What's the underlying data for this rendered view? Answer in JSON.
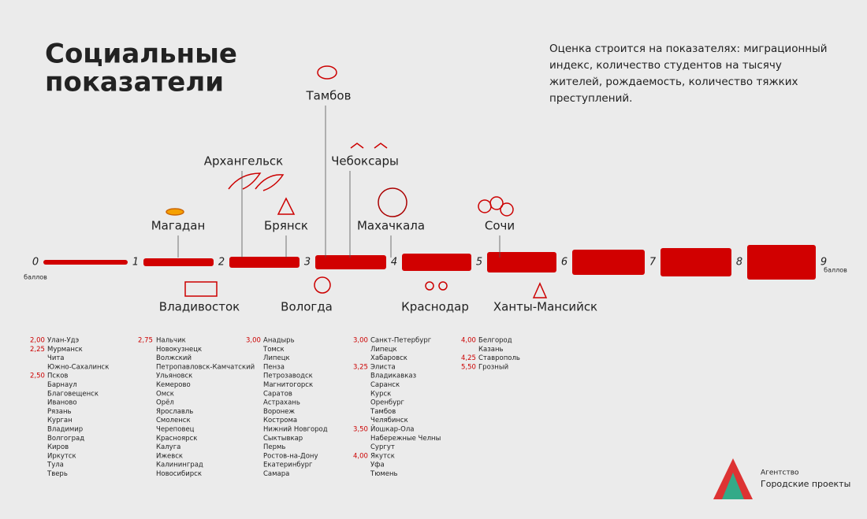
{
  "header": {
    "title_lines": [
      "Социальные",
      "показатели"
    ],
    "description": "Оценка строится на показателях: миграционный индекс, количество студентов на тысячу жителей, рождаемость, количество тяжких преступлений."
  },
  "scale": {
    "ticks": [
      0,
      1,
      2,
      3,
      4,
      5,
      6,
      7,
      8,
      9
    ],
    "unit_start": "баллов",
    "unit_end": "баллов"
  },
  "highlights": {
    "above": [
      "Магадан",
      "Архангельск",
      "Брянск",
      "Тамбов",
      "Чебоксары",
      "Махачкала",
      "Сочи"
    ],
    "below": [
      "Владивосток",
      "Вологда",
      "Краснодар",
      "Ханты-Мансийск"
    ]
  },
  "columns": [
    [
      {
        "score": "2,00",
        "cities": [
          "Улан-Удэ"
        ]
      },
      {
        "score": "2,25",
        "cities": [
          "Мурманск",
          "Чита",
          "Южно-Сахалинск"
        ]
      },
      {
        "score": "2,50",
        "cities": [
          "Псков",
          "Барнаул",
          "Благовещенск",
          "Иваново",
          "Рязань",
          "Курган",
          "Владимир",
          "Волгоград",
          "Киров",
          "Иркутск",
          "Тула",
          "Тверь"
        ]
      }
    ],
    [
      {
        "score": "2,75",
        "cities": [
          "Нальчик",
          "Новокузнецк",
          "Волжский",
          "Петропавловск-Камчатский",
          "Ульяновск",
          "Кемерово",
          "Омск",
          "Орёл",
          "Ярославль",
          "Смоленск",
          "Череповец",
          "Красноярск",
          "Калуга",
          "Ижевск",
          "Калининград",
          "Новосибирск"
        ]
      }
    ],
    [
      {
        "score": "3,00",
        "cities": [
          "Анадырь",
          "Томск",
          "Липецк",
          "Пенза",
          "Петрозаводск",
          "Магнитогорск",
          "Саратов",
          "Астрахань",
          "Воронеж",
          "Кострома",
          "Нижний Новгород",
          "Сыктывкар",
          "Пермь",
          "Ростов-на-Дону",
          "Екатеринбург",
          "Самара"
        ]
      }
    ],
    [
      {
        "score": "3,00",
        "cities": [
          "Санкт-Петербург",
          "Липецк",
          "Хабаровск"
        ]
      },
      {
        "score": "3,25",
        "cities": [
          "Элиста",
          "Владикавказ",
          "Саранск",
          "Курск",
          "Оренбург",
          "Тамбов",
          "Челябинск"
        ]
      },
      {
        "score": "3,50",
        "cities": [
          "Йошкар-Ола",
          "Набережные Челны",
          "Сургут"
        ]
      },
      {
        "score": "4,00",
        "cities": [
          "Якутск",
          "Уфа",
          "Тюмень"
        ]
      }
    ],
    [
      {
        "score": "4,00",
        "cities": [
          "Белгород",
          "Казань"
        ]
      },
      {
        "score": "4,25",
        "cities": [
          "Ставрополь"
        ]
      },
      {
        "score": "5,50",
        "cities": [
          "Грозный"
        ]
      }
    ]
  ],
  "logo": {
    "line1": "Агентство",
    "line2": "Городские проекты"
  }
}
